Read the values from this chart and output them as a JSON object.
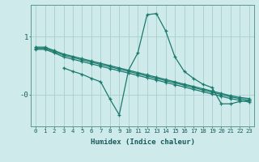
{
  "xlabel": "Humidex (Indice chaleur)",
  "bg_color": "#ceeaea",
  "line_color": "#1a7a6e",
  "grid_color": "#aacece",
  "xlim": [
    -0.5,
    23.5
  ],
  "ylim": [
    -0.55,
    1.55
  ],
  "xticks": [
    0,
    1,
    2,
    3,
    4,
    5,
    6,
    7,
    8,
    9,
    10,
    11,
    12,
    13,
    14,
    15,
    16,
    17,
    18,
    19,
    20,
    21,
    22,
    23
  ],
  "ytick_positions": [
    0,
    1
  ],
  "ytick_labels": [
    "-0",
    "1"
  ],
  "lines": [
    {
      "x": [
        0,
        1,
        2,
        3,
        4,
        5,
        6,
        7,
        8,
        9,
        10,
        11,
        12,
        13,
        14,
        15,
        16,
        17,
        18,
        19,
        20,
        21,
        22,
        23
      ],
      "y": [
        0.82,
        0.82,
        0.76,
        0.7,
        0.66,
        0.62,
        0.58,
        0.54,
        0.5,
        0.46,
        0.42,
        0.38,
        0.34,
        0.3,
        0.26,
        0.22,
        0.18,
        0.14,
        0.1,
        0.06,
        0.02,
        -0.02,
        -0.05,
        -0.07
      ]
    },
    {
      "x": [
        0,
        1,
        2,
        3,
        4,
        5,
        6,
        7,
        8,
        9,
        10,
        11,
        12,
        13,
        14,
        15,
        16,
        17,
        18,
        19,
        20,
        21,
        22,
        23
      ],
      "y": [
        0.8,
        0.8,
        0.74,
        0.68,
        0.64,
        0.6,
        0.56,
        0.52,
        0.48,
        0.44,
        0.4,
        0.36,
        0.32,
        0.28,
        0.24,
        0.2,
        0.16,
        0.12,
        0.08,
        0.04,
        0.0,
        -0.04,
        -0.07,
        -0.1
      ]
    },
    {
      "x": [
        0,
        1,
        2,
        3,
        4,
        5,
        6,
        7,
        8,
        9,
        10,
        11,
        12,
        13,
        14,
        15,
        16,
        17,
        18,
        19,
        20,
        21,
        22,
        23
      ],
      "y": [
        0.78,
        0.78,
        0.72,
        0.65,
        0.61,
        0.57,
        0.53,
        0.49,
        0.45,
        0.41,
        0.37,
        0.33,
        0.29,
        0.25,
        0.21,
        0.17,
        0.13,
        0.09,
        0.05,
        0.01,
        -0.03,
        -0.07,
        -0.1,
        -0.13
      ]
    },
    {
      "x": [
        3,
        4,
        5,
        6,
        7,
        8,
        9,
        10,
        11,
        12,
        13,
        14,
        15,
        16,
        17,
        18,
        19,
        20,
        21,
        22,
        23
      ],
      "y": [
        0.46,
        0.4,
        0.35,
        0.28,
        0.22,
        -0.08,
        -0.35,
        0.42,
        0.72,
        1.38,
        1.4,
        1.1,
        0.65,
        0.4,
        0.28,
        0.18,
        0.12,
        -0.16,
        -0.16,
        -0.12,
        -0.1
      ]
    }
  ]
}
